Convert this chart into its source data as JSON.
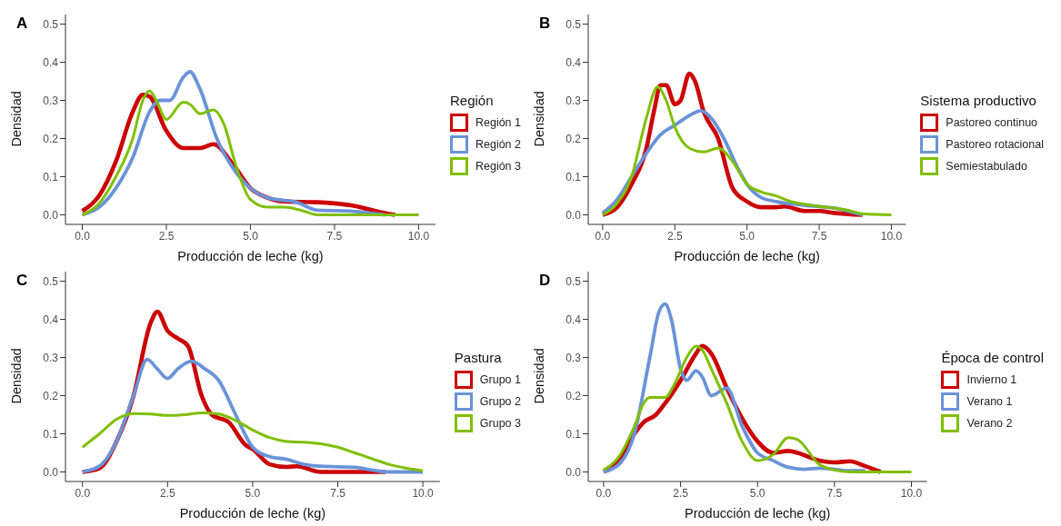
{
  "chart_data": [
    {
      "type": "line",
      "title": "A",
      "xlabel": "Producción de leche (kg)",
      "ylabel": "Densidad",
      "legend_title": "Región",
      "legend": "right",
      "grid": false,
      "marker": "none",
      "xlim": [
        -0.5,
        10.5
      ],
      "ylim": [
        -0.025,
        0.525
      ],
      "xticks": [
        {
          "value": 0,
          "label": "0.0"
        },
        {
          "value": 2.5,
          "label": "2.5"
        },
        {
          "value": 5,
          "label": "5.0"
        },
        {
          "value": 7.5,
          "label": "7.5"
        },
        {
          "value": 10,
          "label": "10.0"
        }
      ],
      "yticks": [
        {
          "value": 0,
          "label": "0.0"
        },
        {
          "value": 0.1,
          "label": "0.1"
        },
        {
          "value": 0.2,
          "label": "0.2"
        },
        {
          "value": 0.3,
          "label": "0.3"
        },
        {
          "value": 0.4,
          "label": "0.4"
        },
        {
          "value": 0.5,
          "label": "0.5"
        }
      ],
      "series": [
        {
          "name": "Región 1",
          "color": "#cc0000",
          "x": [
            0,
            0.5,
            1,
            1.5,
            1.8,
            2,
            2.5,
            3,
            3.5,
            3.9,
            4.5,
            5,
            5.5,
            6,
            7,
            7.5,
            8,
            8.5,
            9,
            9.3
          ],
          "values": [
            0.01,
            0.05,
            0.14,
            0.27,
            0.315,
            0.31,
            0.22,
            0.175,
            0.175,
            0.185,
            0.13,
            0.07,
            0.045,
            0.035,
            0.033,
            0.03,
            0.025,
            0.015,
            0.005,
            0
          ]
        },
        {
          "name": "Región 2",
          "color": "#6a93d8",
          "x": [
            0,
            0.5,
            1,
            1.5,
            2,
            2.3,
            2.6,
            3,
            3.2,
            3.5,
            4,
            4.5,
            5,
            5.5,
            6,
            6.3,
            7,
            8,
            8.5,
            9
          ],
          "values": [
            0,
            0.02,
            0.07,
            0.15,
            0.27,
            0.3,
            0.3,
            0.36,
            0.375,
            0.33,
            0.2,
            0.12,
            0.07,
            0.045,
            0.038,
            0.035,
            0.012,
            0.01,
            0.005,
            0
          ]
        },
        {
          "name": "Región 3",
          "color": "#7fbf00",
          "x": [
            0,
            0.5,
            1,
            1.5,
            1.8,
            2,
            2.2,
            2.5,
            3,
            3.2,
            3.5,
            3.9,
            4.2,
            4.6,
            5,
            5.5,
            6,
            6.5,
            7,
            10
          ],
          "values": [
            0,
            0.03,
            0.1,
            0.2,
            0.3,
            0.325,
            0.3,
            0.25,
            0.295,
            0.29,
            0.265,
            0.275,
            0.24,
            0.12,
            0.04,
            0.02,
            0.02,
            0.012,
            0,
            0
          ]
        }
      ]
    },
    {
      "type": "line",
      "title": "B",
      "xlabel": "Producción de leche (kg)",
      "ylabel": "Densidad",
      "legend_title": "Sistema productivo",
      "legend": "right",
      "grid": false,
      "marker": "none",
      "xlim": [
        -0.5,
        10.5
      ],
      "ylim": [
        -0.025,
        0.525
      ],
      "xticks": [
        {
          "value": 0,
          "label": "0.0"
        },
        {
          "value": 2.5,
          "label": "2.5"
        },
        {
          "value": 5,
          "label": "5.0"
        },
        {
          "value": 7.5,
          "label": "7.5"
        },
        {
          "value": 10,
          "label": "10.0"
        }
      ],
      "yticks": [
        {
          "value": 0,
          "label": "0.0"
        },
        {
          "value": 0.1,
          "label": "0.1"
        },
        {
          "value": 0.2,
          "label": "0.2"
        },
        {
          "value": 0.3,
          "label": "0.3"
        },
        {
          "value": 0.4,
          "label": "0.4"
        },
        {
          "value": 0.5,
          "label": "0.5"
        }
      ],
      "series": [
        {
          "name": "Pastoreo continuo",
          "color": "#cc0000",
          "x": [
            0,
            0.5,
            1,
            1.5,
            1.8,
            2,
            2.2,
            2.5,
            2.7,
            3,
            3.2,
            3.5,
            4,
            4.5,
            5,
            5.5,
            6,
            6.3,
            7,
            7.5,
            8,
            9
          ],
          "values": [
            0,
            0.02,
            0.08,
            0.17,
            0.28,
            0.34,
            0.34,
            0.29,
            0.3,
            0.37,
            0.35,
            0.27,
            0.2,
            0.07,
            0.035,
            0.02,
            0.02,
            0.022,
            0.01,
            0.01,
            0.005,
            0
          ]
        },
        {
          "name": "Pastoreo rotacional",
          "color": "#6a93d8",
          "x": [
            0,
            0.5,
            1,
            1.5,
            2,
            2.5,
            3,
            3.4,
            3.8,
            4.2,
            4.7,
            5,
            5.5,
            6,
            7,
            8,
            8.5,
            9
          ],
          "values": [
            0.005,
            0.04,
            0.1,
            0.16,
            0.21,
            0.235,
            0.26,
            0.273,
            0.25,
            0.2,
            0.12,
            0.08,
            0.045,
            0.035,
            0.025,
            0.018,
            0.01,
            0
          ]
        },
        {
          "name": "Semiestabulado",
          "color": "#7fbf00",
          "x": [
            0,
            0.5,
            1,
            1.5,
            1.9,
            2.2,
            2.5,
            3,
            3.5,
            4,
            4.5,
            5,
            5.5,
            6,
            6.5,
            7,
            7.5,
            8,
            8.5,
            9,
            10
          ],
          "values": [
            0,
            0.03,
            0.1,
            0.25,
            0.335,
            0.3,
            0.23,
            0.175,
            0.165,
            0.175,
            0.14,
            0.08,
            0.06,
            0.05,
            0.035,
            0.028,
            0.022,
            0.018,
            0.012,
            0.003,
            0
          ]
        }
      ]
    },
    {
      "type": "line",
      "title": "C",
      "xlabel": "Producción de leche (kg)",
      "ylabel": "Densidad",
      "legend_title": "Pastura",
      "legend": "right",
      "grid": false,
      "marker": "none",
      "xlim": [
        -0.5,
        10.5
      ],
      "ylim": [
        -0.025,
        0.525
      ],
      "xticks": [
        {
          "value": 0,
          "label": "0.0"
        },
        {
          "value": 2.5,
          "label": "2.5"
        },
        {
          "value": 5,
          "label": "5.0"
        },
        {
          "value": 7.5,
          "label": "7.5"
        },
        {
          "value": 10,
          "label": "10.0"
        }
      ],
      "yticks": [
        {
          "value": 0,
          "label": "0.0"
        },
        {
          "value": 0.1,
          "label": "0.1"
        },
        {
          "value": 0.2,
          "label": "0.2"
        },
        {
          "value": 0.3,
          "label": "0.3"
        },
        {
          "value": 0.4,
          "label": "0.4"
        },
        {
          "value": 0.5,
          "label": "0.5"
        }
      ],
      "series": [
        {
          "name": "Grupo 1",
          "color": "#cc0000",
          "x": [
            0,
            0.5,
            1,
            1.5,
            2,
            2.2,
            2.5,
            2.8,
            3.1,
            3.5,
            3.8,
            4.3,
            4.8,
            5,
            5.5,
            6,
            6.3,
            7,
            8.9
          ],
          "values": [
            0,
            0.01,
            0.08,
            0.2,
            0.39,
            0.42,
            0.37,
            0.35,
            0.33,
            0.2,
            0.15,
            0.13,
            0.07,
            0.06,
            0.02,
            0.013,
            0.015,
            0,
            0
          ]
        },
        {
          "name": "Grupo 2",
          "color": "#6a93d8",
          "x": [
            0,
            0.5,
            1,
            1.5,
            1.9,
            2.2,
            2.5,
            2.8,
            3.2,
            3.6,
            4,
            4.5,
            5,
            5.5,
            6,
            6.5,
            7,
            8,
            8.5,
            9,
            10
          ],
          "values": [
            0,
            0.015,
            0.08,
            0.2,
            0.295,
            0.27,
            0.245,
            0.27,
            0.29,
            0.27,
            0.24,
            0.15,
            0.065,
            0.04,
            0.033,
            0.02,
            0.015,
            0.012,
            0.005,
            0,
            0
          ]
        },
        {
          "name": "Grupo 3",
          "color": "#7fbf00",
          "x": [
            0,
            0.5,
            1,
            1.5,
            2,
            2.5,
            3,
            3.5,
            4,
            4.5,
            5,
            5.5,
            6,
            6.5,
            7,
            7.5,
            8,
            8.5,
            9,
            9.5,
            10
          ],
          "values": [
            0.065,
            0.1,
            0.138,
            0.153,
            0.152,
            0.148,
            0.15,
            0.155,
            0.152,
            0.135,
            0.11,
            0.09,
            0.08,
            0.078,
            0.074,
            0.065,
            0.05,
            0.035,
            0.02,
            0.01,
            0.003
          ]
        }
      ]
    },
    {
      "type": "line",
      "title": "D",
      "xlabel": "Producción de leche (kg)",
      "ylabel": "Densidad",
      "legend_title": "Época de control",
      "legend": "right",
      "grid": false,
      "marker": "none",
      "xlim": [
        -0.5,
        10.5
      ],
      "ylim": [
        -0.025,
        0.525
      ],
      "xticks": [
        {
          "value": 0,
          "label": "0.0"
        },
        {
          "value": 2.5,
          "label": "2.5"
        },
        {
          "value": 5,
          "label": "5.0"
        },
        {
          "value": 7.5,
          "label": "7.5"
        },
        {
          "value": 10,
          "label": "10.0"
        }
      ],
      "yticks": [
        {
          "value": 0,
          "label": "0.0"
        },
        {
          "value": 0.1,
          "label": "0.1"
        },
        {
          "value": 0.2,
          "label": "0.2"
        },
        {
          "value": 0.3,
          "label": "0.3"
        },
        {
          "value": 0.4,
          "label": "0.4"
        },
        {
          "value": 0.5,
          "label": "0.5"
        }
      ],
      "series": [
        {
          "name": "Invierno 1",
          "color": "#cc0000",
          "x": [
            0,
            0.5,
            1,
            1.3,
            1.7,
            2,
            2.5,
            3,
            3.2,
            3.5,
            4,
            4.5,
            5,
            5.5,
            6,
            6.3,
            7,
            7.5,
            8,
            8.5,
            9
          ],
          "values": [
            0,
            0.03,
            0.1,
            0.13,
            0.15,
            0.18,
            0.24,
            0.31,
            0.33,
            0.31,
            0.22,
            0.14,
            0.08,
            0.05,
            0.055,
            0.05,
            0.03,
            0.025,
            0.028,
            0.015,
            0
          ]
        },
        {
          "name": "Verano 1",
          "color": "#6a93d8",
          "x": [
            0,
            0.5,
            1,
            1.5,
            1.8,
            2,
            2.2,
            2.5,
            2.7,
            3,
            3.2,
            3.5,
            4,
            4.5,
            5,
            5.5,
            6,
            6.5,
            7,
            7.5,
            8,
            8.5
          ],
          "values": [
            0,
            0.02,
            0.1,
            0.3,
            0.42,
            0.44,
            0.4,
            0.27,
            0.24,
            0.265,
            0.25,
            0.2,
            0.22,
            0.12,
            0.05,
            0.03,
            0.012,
            0.007,
            0.01,
            0.007,
            0.003,
            0.003
          ]
        },
        {
          "name": "Verano 2",
          "color": "#7fbf00",
          "x": [
            0,
            0.5,
            1,
            1.3,
            1.5,
            2,
            2.3,
            2.7,
            3,
            3.2,
            3.5,
            4,
            4.5,
            5,
            5.5,
            6,
            6.3,
            7,
            7.5,
            8,
            10
          ],
          "values": [
            0.005,
            0.04,
            0.12,
            0.18,
            0.195,
            0.195,
            0.23,
            0.3,
            0.33,
            0.32,
            0.27,
            0.18,
            0.08,
            0.03,
            0.045,
            0.09,
            0.085,
            0.02,
            0.005,
            0,
            0
          ]
        }
      ]
    }
  ]
}
